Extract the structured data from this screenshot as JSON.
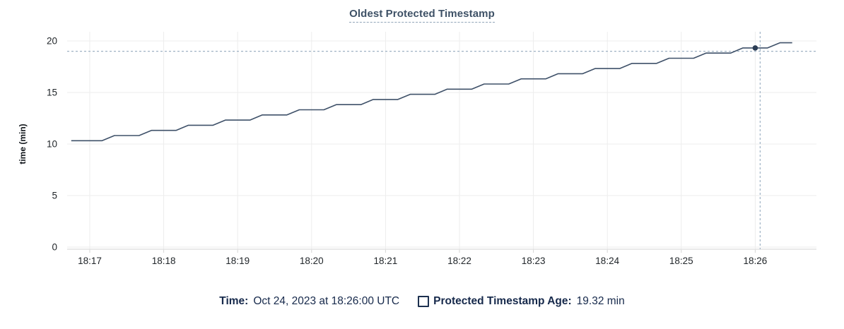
{
  "chart_data": {
    "type": "line",
    "title": "Oldest Protected Timestamp",
    "xlabel": "",
    "ylabel": "time (min)",
    "ylim": [
      0,
      20
    ],
    "y_ticks": [
      0,
      5,
      10,
      15,
      20
    ],
    "x_tick_labels": [
      "18:17",
      "18:18",
      "18:19",
      "18:20",
      "18:21",
      "18:22",
      "18:23",
      "18:24",
      "18:25",
      "18:26"
    ],
    "grid": "on",
    "legend_position": "bottom",
    "series": [
      {
        "name": "Protected Timestamp Age",
        "unit": "min",
        "color": "#3f5169",
        "x": [
          "18:16:45",
          "18:16:50",
          "18:17:00",
          "18:17:10",
          "18:17:20",
          "18:17:30",
          "18:17:40",
          "18:17:50",
          "18:18:00",
          "18:18:10",
          "18:18:20",
          "18:18:30",
          "18:18:40",
          "18:18:50",
          "18:19:00",
          "18:19:10",
          "18:19:20",
          "18:19:30",
          "18:19:40",
          "18:19:50",
          "18:20:00",
          "18:20:10",
          "18:20:20",
          "18:20:30",
          "18:20:40",
          "18:20:50",
          "18:21:00",
          "18:21:10",
          "18:21:20",
          "18:21:30",
          "18:21:40",
          "18:21:50",
          "18:22:00",
          "18:22:10",
          "18:22:20",
          "18:22:30",
          "18:22:40",
          "18:22:50",
          "18:23:00",
          "18:23:10",
          "18:23:20",
          "18:23:30",
          "18:23:40",
          "18:23:50",
          "18:24:00",
          "18:24:10",
          "18:24:20",
          "18:24:30",
          "18:24:40",
          "18:24:50",
          "18:25:00",
          "18:25:10",
          "18:25:20",
          "18:25:30",
          "18:25:40",
          "18:25:50",
          "18:26:00",
          "18:26:10",
          "18:26:20",
          "18:26:30"
        ],
        "values": [
          10.32,
          10.32,
          10.32,
          10.32,
          10.82,
          10.82,
          10.82,
          11.32,
          11.32,
          11.32,
          11.82,
          11.82,
          11.82,
          12.32,
          12.32,
          12.32,
          12.82,
          12.82,
          12.82,
          13.32,
          13.32,
          13.32,
          13.82,
          13.82,
          13.82,
          14.32,
          14.32,
          14.32,
          14.82,
          14.82,
          14.82,
          15.32,
          15.32,
          15.32,
          15.82,
          15.82,
          15.82,
          16.32,
          16.32,
          16.32,
          16.82,
          16.82,
          16.82,
          17.32,
          17.32,
          17.32,
          17.82,
          17.82,
          17.82,
          18.32,
          18.32,
          18.32,
          18.82,
          18.82,
          18.82,
          19.32,
          19.32,
          19.32,
          19.82,
          19.82
        ]
      }
    ],
    "highlighted_point": {
      "time": "18:26:00",
      "value": 19.32,
      "index": 56
    },
    "crosshair": {
      "time": "18:26:04",
      "value": 19.0
    }
  },
  "legend": {
    "time_label": "Time:",
    "time_value": "Oct 24, 2023 at 18:26:00 UTC",
    "series_label": "Protected Timestamp Age:",
    "series_value": "19.32 min"
  },
  "colors": {
    "series_line": "#3f5169",
    "highlight_dot": "#2c3d55",
    "crosshair": "#9fb2c4",
    "gridline": "#ededed",
    "axis_line": "#e2e2e2",
    "tick_mark": "#d6d6d6",
    "tick_text": "#1f2428",
    "title_text": "#3e5166",
    "legend_text": "#16294b"
  }
}
